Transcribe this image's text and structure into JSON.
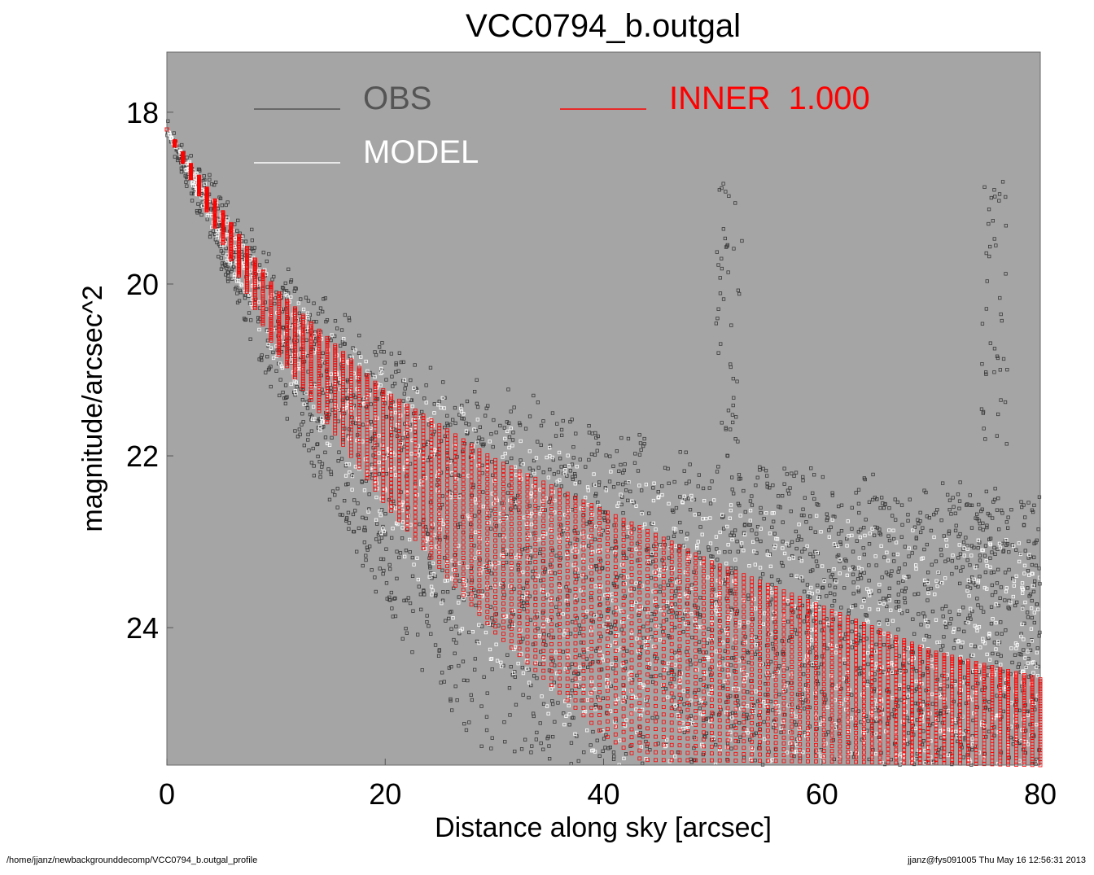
{
  "chart_data": {
    "type": "scatter",
    "title": "VCC0794_b.outgal",
    "xlabel": "Distance along sky [arcsec]",
    "ylabel": "magnitude/arcsec^2",
    "xlim": [
      0,
      80
    ],
    "ylim": [
      25.6,
      17.3
    ],
    "y_inverted": true,
    "xticks": [
      "0",
      "20",
      "40",
      "60",
      "80"
    ],
    "yticks": [
      "18",
      "20",
      "22",
      "24"
    ],
    "xtick_values": [
      0,
      20,
      40,
      60,
      80
    ],
    "ytick_values": [
      18,
      20,
      22,
      24
    ],
    "grid": false,
    "background_color": "#a5a5a5",
    "legend_position": "top",
    "legend": [
      {
        "label": "OBS",
        "color": "#555555"
      },
      {
        "label": "MODEL",
        "color": "#ffffff"
      },
      {
        "label": "INNER  1.000",
        "color": "#ff0000"
      }
    ],
    "series": [
      {
        "name": "OBS",
        "color": "#3a3a3a",
        "marker": "square-open",
        "trend": {
          "x": [
            0,
            5,
            10,
            15,
            20,
            30,
            40,
            50,
            60,
            70,
            80
          ],
          "y_upper": [
            18.2,
            19.0,
            19.8,
            20.3,
            20.7,
            21.2,
            21.7,
            22.0,
            22.2,
            22.4,
            22.5
          ],
          "y_lower": [
            18.2,
            19.8,
            21.3,
            22.5,
            23.8,
            25.6,
            25.6,
            25.6,
            25.6,
            25.6,
            25.6
          ]
        },
        "spikes": [
          {
            "x": 51.5,
            "y_top": 18.8
          },
          {
            "x": 75.8,
            "y_top": 18.8
          }
        ]
      },
      {
        "name": "MODEL",
        "color": "#ffffff",
        "marker": "square-open",
        "trend": {
          "x": [
            0,
            10,
            20,
            30,
            40,
            50,
            60,
            70,
            80
          ],
          "y_upper": [
            18.2,
            20.0,
            21.0,
            21.6,
            22.1,
            22.5,
            22.7,
            22.9,
            23.0
          ],
          "y_lower": [
            18.2,
            21.0,
            23.0,
            24.5,
            25.6,
            25.6,
            25.6,
            25.6,
            25.6
          ]
        }
      },
      {
        "name": "INNER  1.000",
        "color": "#ff0000",
        "marker": "square-open",
        "trend": {
          "x": [
            0,
            10,
            20,
            30,
            40,
            43.5,
            50,
            60,
            70,
            80
          ],
          "y_upper": [
            18.2,
            20.1,
            21.3,
            22.1,
            22.7,
            22.9,
            23.3,
            23.8,
            24.3,
            24.6
          ],
          "y_lower": [
            18.2,
            20.8,
            22.6,
            24.1,
            25.3,
            25.6,
            25.6,
            25.6,
            25.6,
            25.6
          ]
        }
      }
    ]
  },
  "footer": {
    "path": "/home/jjanz/newbackgrounddecomp/VCC0794_b.outgal_profile",
    "stamp": "jjanz@fys091005  Thu May 16 12:56:31 2013"
  }
}
